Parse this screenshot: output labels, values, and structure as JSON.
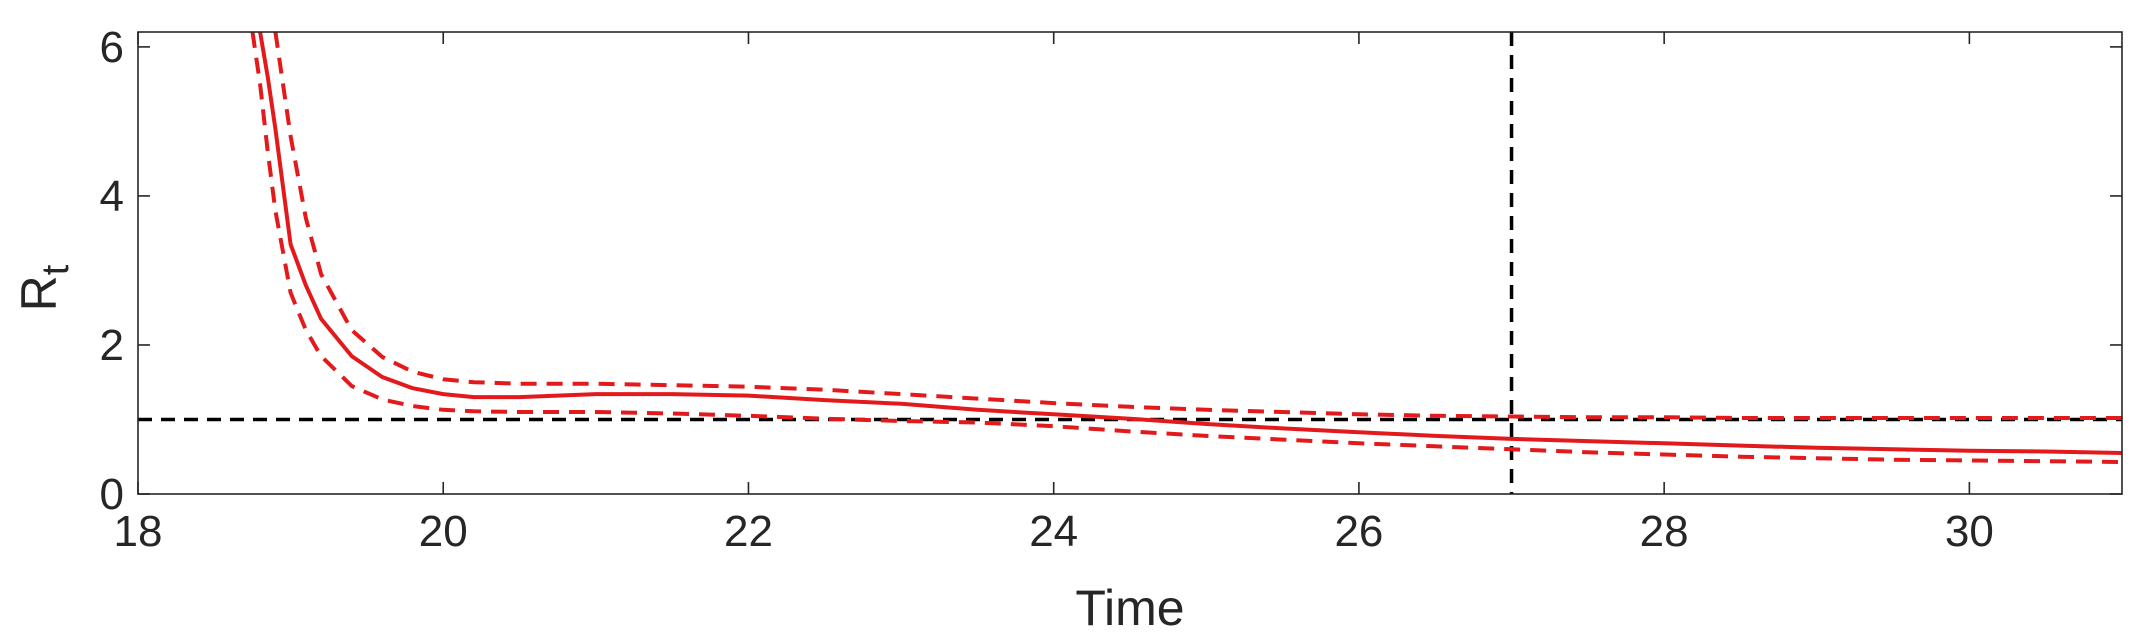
{
  "chart_data": {
    "type": "line",
    "title": "",
    "xlabel": "Time",
    "ylabel": "R",
    "ylabel_subscript": "t",
    "xlim": [
      18,
      31
    ],
    "ylim": [
      0,
      6.2
    ],
    "xticks": [
      18,
      20,
      22,
      24,
      26,
      28,
      30
    ],
    "yticks": [
      0,
      2,
      4,
      6
    ],
    "grid": false,
    "legend": "none",
    "series": [
      {
        "style": "solid",
        "color": "#e31a1c",
        "x": [
          18.8,
          18.85,
          18.9,
          19.0,
          19.1,
          19.2,
          19.4,
          19.6,
          19.8,
          20.0,
          20.2,
          20.5,
          21.0,
          21.5,
          22.0,
          22.5,
          23.0,
          23.5,
          24.0,
          24.5,
          25.0,
          25.5,
          26.0,
          26.5,
          27.0,
          27.5,
          28.0,
          28.5,
          29.0,
          29.5,
          30.0,
          30.5,
          31.0
        ],
        "y": [
          6.2,
          5.6,
          4.9,
          3.35,
          2.8,
          2.35,
          1.85,
          1.57,
          1.42,
          1.34,
          1.3,
          1.3,
          1.34,
          1.34,
          1.32,
          1.26,
          1.21,
          1.13,
          1.07,
          1.01,
          0.94,
          0.88,
          0.83,
          0.78,
          0.74,
          0.71,
          0.68,
          0.65,
          0.62,
          0.6,
          0.58,
          0.57,
          0.55
        ]
      },
      {
        "style": "dashed",
        "color": "#e31a1c",
        "x": [
          18.9,
          19.0,
          19.1,
          19.2,
          19.4,
          19.6,
          19.8,
          20.0,
          20.2,
          20.5,
          21.0,
          21.5,
          22.0,
          22.5,
          23.0,
          23.5,
          24.0,
          24.5,
          25.0,
          25.5,
          26.0,
          26.5,
          27.0,
          27.5,
          28.0,
          28.5,
          29.0,
          29.5,
          30.0,
          30.5,
          31.0
        ],
        "y": [
          6.2,
          4.8,
          3.7,
          2.95,
          2.2,
          1.84,
          1.64,
          1.54,
          1.5,
          1.48,
          1.48,
          1.46,
          1.44,
          1.4,
          1.34,
          1.28,
          1.22,
          1.17,
          1.13,
          1.1,
          1.07,
          1.05,
          1.04,
          1.03,
          1.03,
          1.02,
          1.02,
          1.02,
          1.02,
          1.02,
          1.02
        ]
      },
      {
        "style": "dashed",
        "color": "#e31a1c",
        "x": [
          18.75,
          18.8,
          18.85,
          18.9,
          19.0,
          19.1,
          19.2,
          19.4,
          19.6,
          19.8,
          20.0,
          20.2,
          20.5,
          21.0,
          21.5,
          22.0,
          22.5,
          23.0,
          23.5,
          24.0,
          24.5,
          25.0,
          25.5,
          26.0,
          26.5,
          27.0,
          27.5,
          28.0,
          28.5,
          29.0,
          29.5,
          30.0,
          30.5,
          31.0
        ],
        "y": [
          6.2,
          5.5,
          4.6,
          3.8,
          2.7,
          2.2,
          1.85,
          1.45,
          1.27,
          1.18,
          1.13,
          1.11,
          1.1,
          1.1,
          1.08,
          1.05,
          1.01,
          0.98,
          0.96,
          0.91,
          0.84,
          0.78,
          0.73,
          0.68,
          0.64,
          0.6,
          0.56,
          0.53,
          0.5,
          0.48,
          0.46,
          0.45,
          0.44,
          0.43
        ]
      }
    ],
    "reference_lines": [
      {
        "orientation": "horizontal",
        "value": 1,
        "style": "dashed",
        "color": "#000000"
      },
      {
        "orientation": "vertical",
        "value": 27,
        "style": "dashed",
        "color": "#000000"
      }
    ]
  }
}
